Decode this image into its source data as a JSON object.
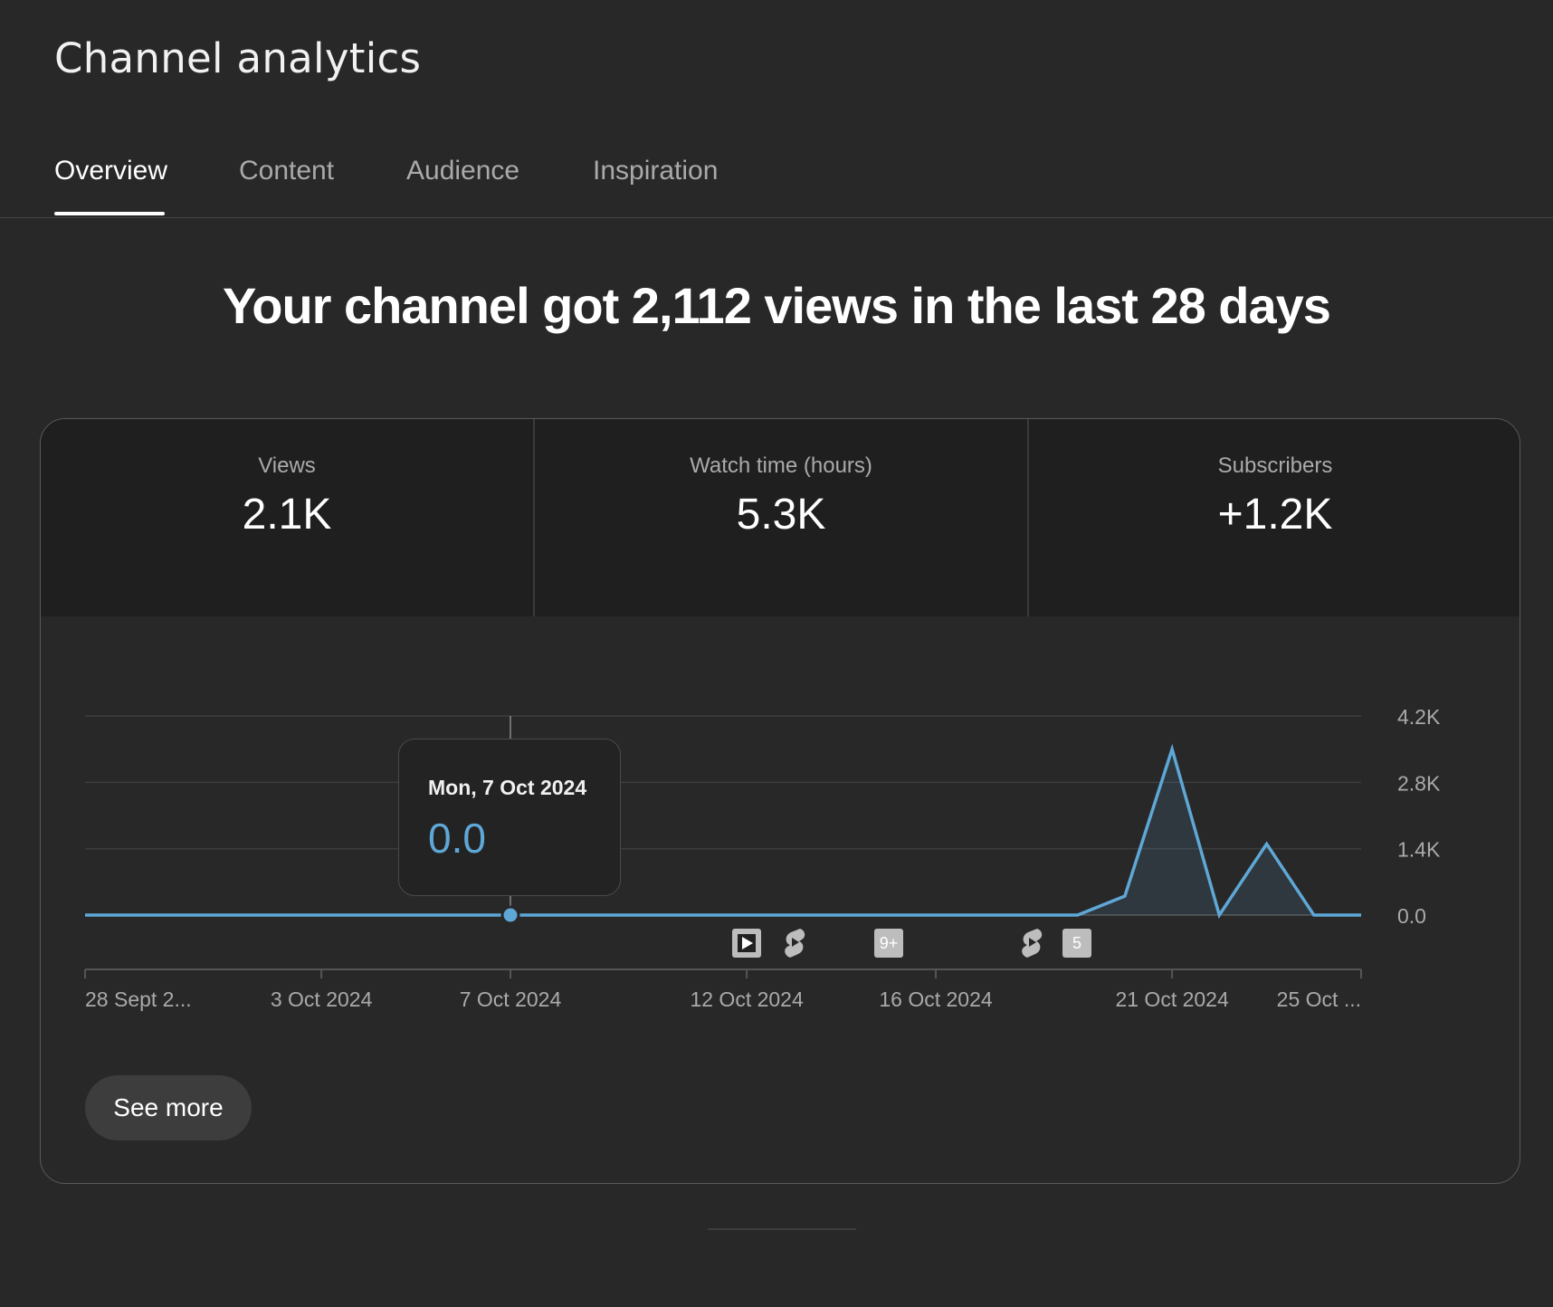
{
  "header": {
    "title": "Channel analytics"
  },
  "tabs": [
    {
      "label": "Overview",
      "active": true
    },
    {
      "label": "Content",
      "active": false
    },
    {
      "label": "Audience",
      "active": false
    },
    {
      "label": "Inspiration",
      "active": false
    }
  ],
  "headline": "Your channel got 2,112 views in the last 28 days",
  "metrics": [
    {
      "label": "Views",
      "value": "2.1K"
    },
    {
      "label": "Watch time (hours)",
      "value": "5.3K"
    },
    {
      "label": "Subscribers",
      "value": "+1.2K"
    }
  ],
  "tooltip": {
    "date": "Mon, 7 Oct 2024",
    "value": "0.0"
  },
  "markers": [
    {
      "icon": "video-play-icon",
      "date": "12 Oct 2024"
    },
    {
      "icon": "shorts-icon",
      "date": "13 Oct 2024"
    },
    {
      "icon": "count-badge",
      "label": "9+",
      "date": "15 Oct 2024"
    },
    {
      "icon": "shorts-icon",
      "date": "18 Oct 2024"
    },
    {
      "icon": "count-badge",
      "label": "5",
      "date": "19 Oct 2024"
    }
  ],
  "see_more_label": "See more",
  "colors": {
    "line": "#5ea7d6",
    "background": "#282828",
    "tab_inactive": "#aaaaaa"
  },
  "chart_data": {
    "type": "area",
    "x_tick_labels": [
      "28 Sept 2...",
      "3 Oct 2024",
      "7 Oct 2024",
      "12 Oct 2024",
      "16 Oct 2024",
      "21 Oct 2024",
      "25 Oct ..."
    ],
    "x_tick_days": [
      0,
      5,
      9,
      14,
      18,
      23,
      27
    ],
    "y_tick_labels": [
      "4.2K",
      "2.8K",
      "1.4K",
      "0.0"
    ],
    "y_ticks": [
      4200,
      2800,
      1400,
      0
    ],
    "ylim": [
      0,
      4200
    ],
    "grid": true,
    "series": [
      {
        "values": [
          0,
          0,
          0,
          0,
          0,
          0,
          0,
          0,
          0,
          0,
          0,
          0,
          0,
          0,
          0,
          0,
          0,
          0,
          0,
          0,
          0,
          0,
          400,
          3500,
          0,
          1500,
          0,
          0
        ]
      }
    ],
    "highlight": {
      "day": 9,
      "date": "Mon, 7 Oct 2024",
      "value": "0.0"
    }
  }
}
